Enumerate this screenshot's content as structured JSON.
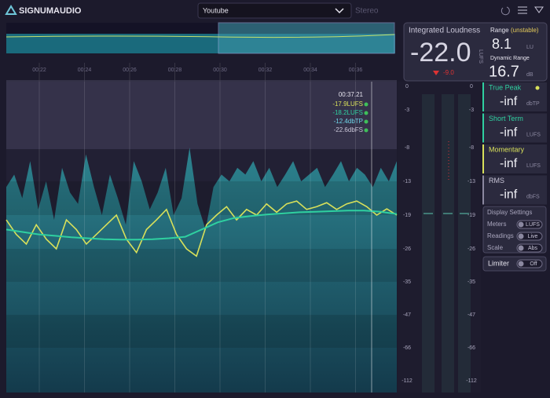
{
  "header": {
    "brand": "SIGNUMAUDIO",
    "preset": "Youtube",
    "channel": "Stereo"
  },
  "graph": {
    "time_labels": [
      "00:22",
      "00:24",
      "00:26",
      "00:28",
      "00:30",
      "00:32",
      "00:34",
      "00:36",
      "00:38"
    ],
    "scale_ticks": [
      "0",
      "-3",
      "-8",
      "-13",
      "-19",
      "-26",
      "-35",
      "-47",
      "-66",
      "-112"
    ],
    "envelope": [
      -14,
      -12,
      -16,
      -10,
      -18,
      -13,
      -20,
      -11,
      -15,
      -17,
      -9,
      -14,
      -19,
      -12,
      -16,
      -21,
      -10,
      -13,
      -18,
      -15,
      -11,
      -19,
      -16,
      -8,
      -17,
      -22,
      -14,
      -12,
      -13,
      -11,
      -12,
      -10,
      -13,
      -11,
      -14,
      -12,
      -10,
      -13,
      -12,
      -11,
      -14,
      -12,
      -10,
      -13,
      -11,
      -12,
      -14,
      -11,
      -13,
      -10
    ],
    "short_term": [
      -22.0,
      -22.5,
      -23.0,
      -23.3,
      -23.6,
      -23.8,
      -24.0,
      -24.1,
      -24.1,
      -24.0,
      -23.8,
      -23.5,
      -22.0,
      -20.5,
      -19.6,
      -19.2,
      -18.9,
      -18.7,
      -18.5,
      -18.4,
      -18.3,
      -18.2,
      -18.2,
      -18.4,
      -18.8
    ],
    "momentary": [
      -20,
      -23,
      -25,
      -21,
      -24,
      -26,
      -20,
      -22,
      -25,
      -23,
      -21,
      -19,
      -24,
      -27,
      -22,
      -20,
      -18,
      -23,
      -26,
      -28,
      -21,
      -19,
      -17.5,
      -20,
      -18,
      -19,
      -17,
      -18.5,
      -17,
      -16.5,
      -18,
      -17.5,
      -16.8,
      -18,
      -17,
      -16.5,
      -17.5,
      -19,
      -17.9,
      -19
    ],
    "cursor": {
      "time": "00:37.21",
      "lines": [
        "-17.9LUFS",
        "-18.2LUFS",
        "-12.4dbTP",
        "-22.6dbFS"
      ]
    }
  },
  "integrated": {
    "title": "Integrated Loudness",
    "value": "-22.0",
    "unit": "LUFS",
    "delta": "-9.0",
    "range_label": "Range",
    "range_status": "(unstable)",
    "range_value": "8.1",
    "range_unit": "LU",
    "dr_label": "Dynamic Range",
    "dr_value": "16.7",
    "dr_unit": "dB"
  },
  "readouts": [
    {
      "name": "True Peak",
      "value": "-inf",
      "unit": "dbTP"
    },
    {
      "name": "Short Term",
      "value": "-inf",
      "unit": "LUFS"
    },
    {
      "name": "Momentary",
      "value": "-inf",
      "unit": "LUFS"
    },
    {
      "name": "RMS",
      "value": "-inf",
      "unit": "dbFS"
    }
  ],
  "display_settings": {
    "title": "Display Settings",
    "rows": [
      {
        "label": "Meters",
        "value": "LUFS"
      },
      {
        "label": "Readings",
        "value": "Live"
      },
      {
        "label": "Scale",
        "value": "Abs"
      }
    ]
  },
  "limiter": {
    "label": "Limiter",
    "value": "Off"
  }
}
